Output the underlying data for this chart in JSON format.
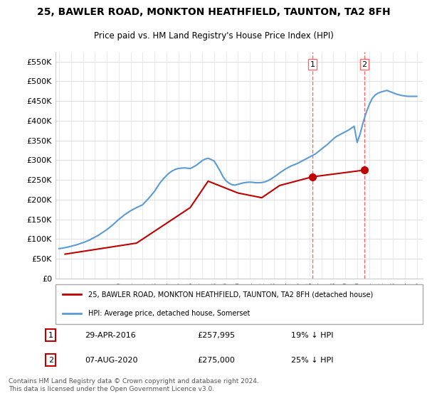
{
  "title_line1": "25, BAWLER ROAD, MONKTON HEATHFIELD, TAUNTON, TA2 8FH",
  "title_line2": "Price paid vs. HM Land Registry's House Price Index (HPI)",
  "ylabel": "",
  "xlim_start": 1995.0,
  "xlim_end": 2025.5,
  "ylim_min": 0,
  "ylim_max": 575000,
  "yticks": [
    0,
    50000,
    100000,
    150000,
    200000,
    250000,
    300000,
    350000,
    400000,
    450000,
    500000,
    550000
  ],
  "ytick_labels": [
    "£0",
    "£50K",
    "£100K",
    "£150K",
    "£200K",
    "£250K",
    "£300K",
    "£350K",
    "£400K",
    "£450K",
    "£500K",
    "£550K"
  ],
  "xticks": [
    1995,
    1996,
    1997,
    1998,
    1999,
    2000,
    2001,
    2002,
    2003,
    2004,
    2005,
    2006,
    2007,
    2008,
    2009,
    2010,
    2011,
    2012,
    2013,
    2014,
    2015,
    2016,
    2017,
    2018,
    2019,
    2020,
    2021,
    2022,
    2023,
    2024,
    2025
  ],
  "hpi_color": "#5b9bd5",
  "price_color": "#c00000",
  "marker1_color": "#c00000",
  "marker2_color": "#c00000",
  "vline_color": "#ff6666",
  "legend_line1": "25, BAWLER ROAD, MONKTON HEATHFIELD, TAUNTON, TA2 8FH (detached house)",
  "legend_line2": "HPI: Average price, detached house, Somerset",
  "annotation1_label": "1",
  "annotation1_date": "29-APR-2016",
  "annotation1_price": "£257,995",
  "annotation1_hpi": "19% ↓ HPI",
  "annotation2_label": "2",
  "annotation2_date": "07-AUG-2020",
  "annotation2_price": "£275,000",
  "annotation2_hpi": "25% ↓ HPI",
  "footer": "Contains HM Land Registry data © Crown copyright and database right 2024.\nThis data is licensed under the Open Government Licence v3.0.",
  "hpi_x": [
    1995,
    1995.25,
    1995.5,
    1995.75,
    1996,
    1996.25,
    1996.5,
    1996.75,
    1997,
    1997.25,
    1997.5,
    1997.75,
    1998,
    1998.25,
    1998.5,
    1998.75,
    1999,
    1999.25,
    1999.5,
    1999.75,
    2000,
    2000.25,
    2000.5,
    2000.75,
    2001,
    2001.25,
    2001.5,
    2001.75,
    2002,
    2002.25,
    2002.5,
    2002.75,
    2003,
    2003.25,
    2003.5,
    2003.75,
    2004,
    2004.25,
    2004.5,
    2004.75,
    2005,
    2005.25,
    2005.5,
    2005.75,
    2006,
    2006.25,
    2006.5,
    2006.75,
    2007,
    2007.25,
    2007.5,
    2007.75,
    2008,
    2008.25,
    2008.5,
    2008.75,
    2009,
    2009.25,
    2009.5,
    2009.75,
    2010,
    2010.25,
    2010.5,
    2010.75,
    2011,
    2011.25,
    2011.5,
    2011.75,
    2012,
    2012.25,
    2012.5,
    2012.75,
    2013,
    2013.25,
    2013.5,
    2013.75,
    2014,
    2014.25,
    2014.5,
    2014.75,
    2015,
    2015.25,
    2015.5,
    2015.75,
    2016,
    2016.25,
    2016.5,
    2016.75,
    2017,
    2017.25,
    2017.5,
    2017.75,
    2018,
    2018.25,
    2018.5,
    2018.75,
    2019,
    2019.25,
    2019.5,
    2019.75,
    2020,
    2020.25,
    2020.5,
    2020.75,
    2021,
    2021.25,
    2021.5,
    2021.75,
    2022,
    2022.25,
    2022.5,
    2022.75,
    2023,
    2023.25,
    2023.5,
    2023.75,
    2024,
    2024.25,
    2024.5,
    2024.75,
    2025
  ],
  "hpi_y": [
    76000,
    77000,
    78500,
    80000,
    82000,
    84000,
    86000,
    88500,
    91000,
    94000,
    97000,
    101000,
    105000,
    109000,
    114000,
    119000,
    124000,
    130000,
    136000,
    143000,
    150000,
    156000,
    162000,
    167000,
    172000,
    176000,
    180000,
    183500,
    187000,
    195000,
    203000,
    212000,
    221000,
    233000,
    244000,
    253000,
    261000,
    268000,
    273000,
    277000,
    279000,
    280000,
    280500,
    280000,
    279000,
    283000,
    287000,
    293000,
    299000,
    303000,
    305000,
    302000,
    298000,
    286000,
    273000,
    258000,
    248000,
    242000,
    238000,
    237000,
    239000,
    241000,
    243000,
    244000,
    244500,
    244000,
    243000,
    243000,
    243500,
    245000,
    248000,
    252000,
    257000,
    262000,
    268000,
    273000,
    278000,
    282000,
    286000,
    289000,
    292000,
    296000,
    300000,
    304000,
    308000,
    312000,
    316000,
    322000,
    328000,
    334000,
    340000,
    347000,
    354000,
    360000,
    364000,
    368000,
    372000,
    376000,
    381000,
    386000,
    345000,
    367000,
    396000,
    420000,
    440000,
    456000,
    465000,
    470000,
    473000,
    475000,
    477000,
    474000,
    471000,
    468000,
    466000,
    464000,
    463000,
    462000,
    462000,
    462000,
    462000
  ],
  "price_x": [
    1995.5,
    2001.5,
    2006.0,
    2007.5,
    2010.0,
    2012.0,
    2013.5,
    2016.25,
    2020.6
  ],
  "price_y": [
    62000,
    90000,
    180000,
    247000,
    217000,
    205000,
    236000,
    257995,
    275000
  ],
  "sale1_x": 2016.25,
  "sale1_y": 257995,
  "sale2_x": 2020.6,
  "sale2_y": 275000,
  "vline1_x": 2016.25,
  "vline2_x": 2020.6,
  "bg_color": "#ffffff",
  "grid_color": "#e0e0e0",
  "marker_box_color": "#c00000"
}
